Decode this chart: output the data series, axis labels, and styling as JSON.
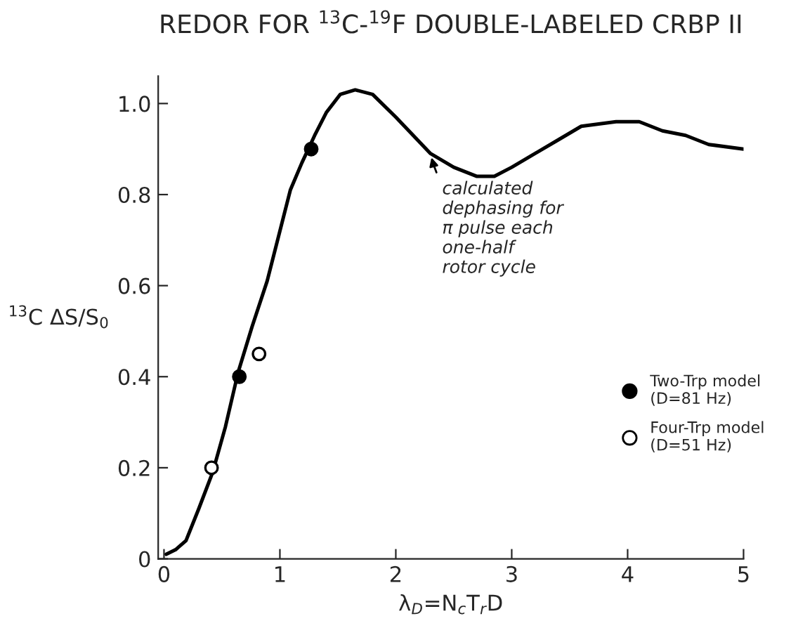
{
  "chart_data": {
    "type": "line",
    "title": "REDOR FOR $^{13}$C-$^{19}$F DOUBLE-LABELED CRBP II",
    "xlabel": "λ$_{D}$=N$_{c}$T$_{r}$D",
    "ylabel": "$^{13}$C ΔS/S$_{0}$",
    "xlim": [
      -0.05,
      5
    ],
    "ylim": [
      0,
      1.06
    ],
    "xticks": [
      0,
      1,
      2,
      3,
      4,
      5
    ],
    "yticks": [
      0,
      {
        "value": 0.2,
        "label": "0.2"
      },
      {
        "value": 0.4,
        "label": "0.4"
      },
      {
        "value": 0.6,
        "label": "0.6"
      },
      {
        "value": 0.8,
        "label": "0.8"
      },
      {
        "value": 1.0,
        "label": "1.0"
      }
    ],
    "grid": false,
    "legend": "right",
    "marker": "none",
    "line_style": "solid",
    "series": [
      {
        "color": "#000000",
        "x": [
          0.02,
          0.1,
          0.19,
          0.3,
          0.42,
          0.53,
          0.64,
          0.76,
          0.89,
          1.0,
          1.09,
          1.19,
          1.3,
          1.4,
          1.52,
          1.65,
          1.8,
          2.0,
          2.15,
          2.3,
          2.5,
          2.7,
          2.85,
          3.0,
          3.2,
          3.4,
          3.6,
          3.9,
          4.1,
          4.3,
          4.5,
          4.7,
          5.0
        ],
        "values": [
          0.01,
          0.02,
          0.04,
          0.11,
          0.19,
          0.29,
          0.41,
          0.51,
          0.61,
          0.72,
          0.81,
          0.87,
          0.93,
          0.98,
          1.02,
          1.03,
          1.02,
          0.97,
          0.93,
          0.89,
          0.86,
          0.84,
          0.84,
          0.86,
          0.89,
          0.92,
          0.95,
          0.96,
          0.96,
          0.94,
          0.93,
          0.91,
          0.9
        ]
      },
      {
        "type": "scatter",
        "name": "Two-Trp model\n(D=81 Hz)",
        "color": "#000000",
        "marker": "circle",
        "x": [
          0.65,
          1.27
        ],
        "values": [
          0.4,
          0.9
        ]
      },
      {
        "type": "scatter",
        "name": "Four-Trp model\n(D=51 Hz)",
        "color": "#ffffff",
        "marker": "circle",
        "x": [
          0.41,
          0.82
        ],
        "values": [
          0.2,
          0.45
        ]
      }
    ],
    "annotations": [
      {
        "text": "calculated\ndephasing for\nπ pulse each\none-half\nrotor cycle",
        "x": 2.3,
        "y": 0.89
      }
    ]
  }
}
